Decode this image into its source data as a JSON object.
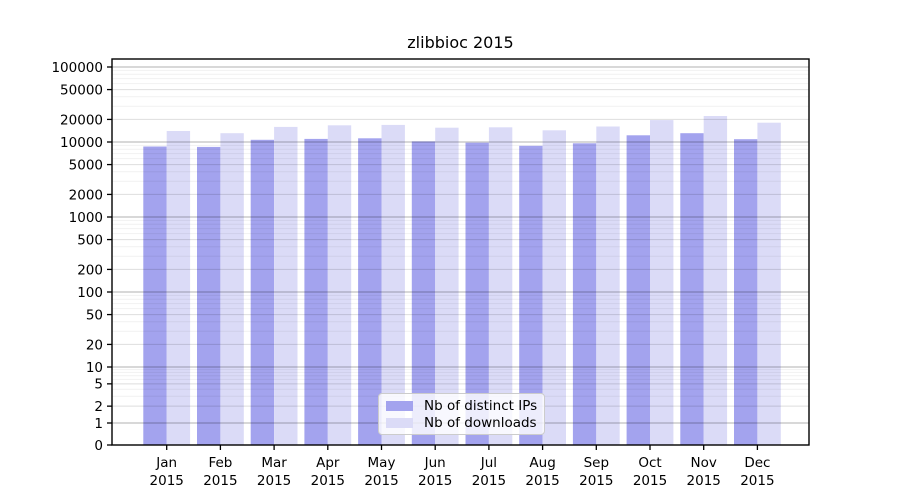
{
  "chart_data": {
    "type": "bar",
    "title": "zlibbioc 2015",
    "categories": [
      "Jan",
      "Feb",
      "Mar",
      "Apr",
      "May",
      "Jun",
      "Jul",
      "Aug",
      "Sep",
      "Oct",
      "Nov",
      "Dec"
    ],
    "x_year": "2015",
    "series": [
      {
        "name": "Nb of distinct IPs",
        "color": "#a3a3ee",
        "values": [
          8700,
          8600,
          10700,
          11000,
          11200,
          10200,
          9800,
          8900,
          9600,
          12300,
          13100,
          10900
        ]
      },
      {
        "name": "Nb of downloads",
        "color": "#dbdbf7",
        "values": [
          14000,
          13100,
          15900,
          16700,
          16900,
          15500,
          15700,
          14300,
          16100,
          19600,
          22200,
          18100
        ]
      }
    ],
    "yscale": "log",
    "yticks": [
      0,
      1,
      2,
      5,
      10,
      20,
      50,
      100,
      200,
      500,
      1000,
      2000,
      5000,
      10000,
      20000,
      50000,
      100000
    ],
    "ylim": [
      0,
      100000
    ],
    "grid": "on",
    "legend_position": "lower center inside plot",
    "axis_color": "#000000",
    "background_color": "#ffffff"
  }
}
